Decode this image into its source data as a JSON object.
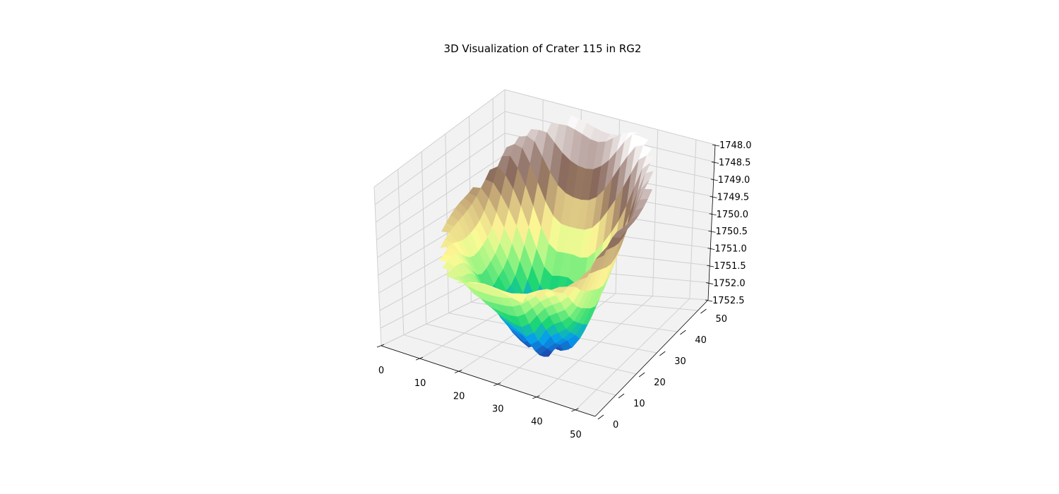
{
  "chart_data": {
    "type": "surface3d",
    "title": "3D Visualization of Crater 115 in RG2",
    "colormap": "terrain",
    "grid": true,
    "xaxis": {
      "ticks": [
        0,
        10,
        20,
        30,
        40,
        50
      ],
      "range": [
        0,
        55
      ]
    },
    "yaxis": {
      "ticks": [
        0,
        10,
        20,
        30,
        40,
        50
      ],
      "range": [
        0,
        55
      ]
    },
    "zaxis": {
      "ticks": [
        "1748.0",
        "1748.5",
        "1749.0",
        "1749.5",
        "1750.0",
        "1750.5",
        "1751.0",
        "1751.5",
        "1752.0",
        "1752.5"
      ],
      "range": [
        1752.5,
        1748.0
      ],
      "inverted": true
    },
    "surface": {
      "center": [
        27,
        27
      ],
      "rim_radius": 22,
      "rim_elevation": 1748.0,
      "floor_elevation": 1752.5,
      "shape": "bowl-shaped crater depression; nearer rim lower (~1750.5), far rim highest (~1748.0)"
    }
  },
  "colors": {
    "pane": "#f2f2f2",
    "grid": "#d0d0d0",
    "axis": "#000000"
  }
}
